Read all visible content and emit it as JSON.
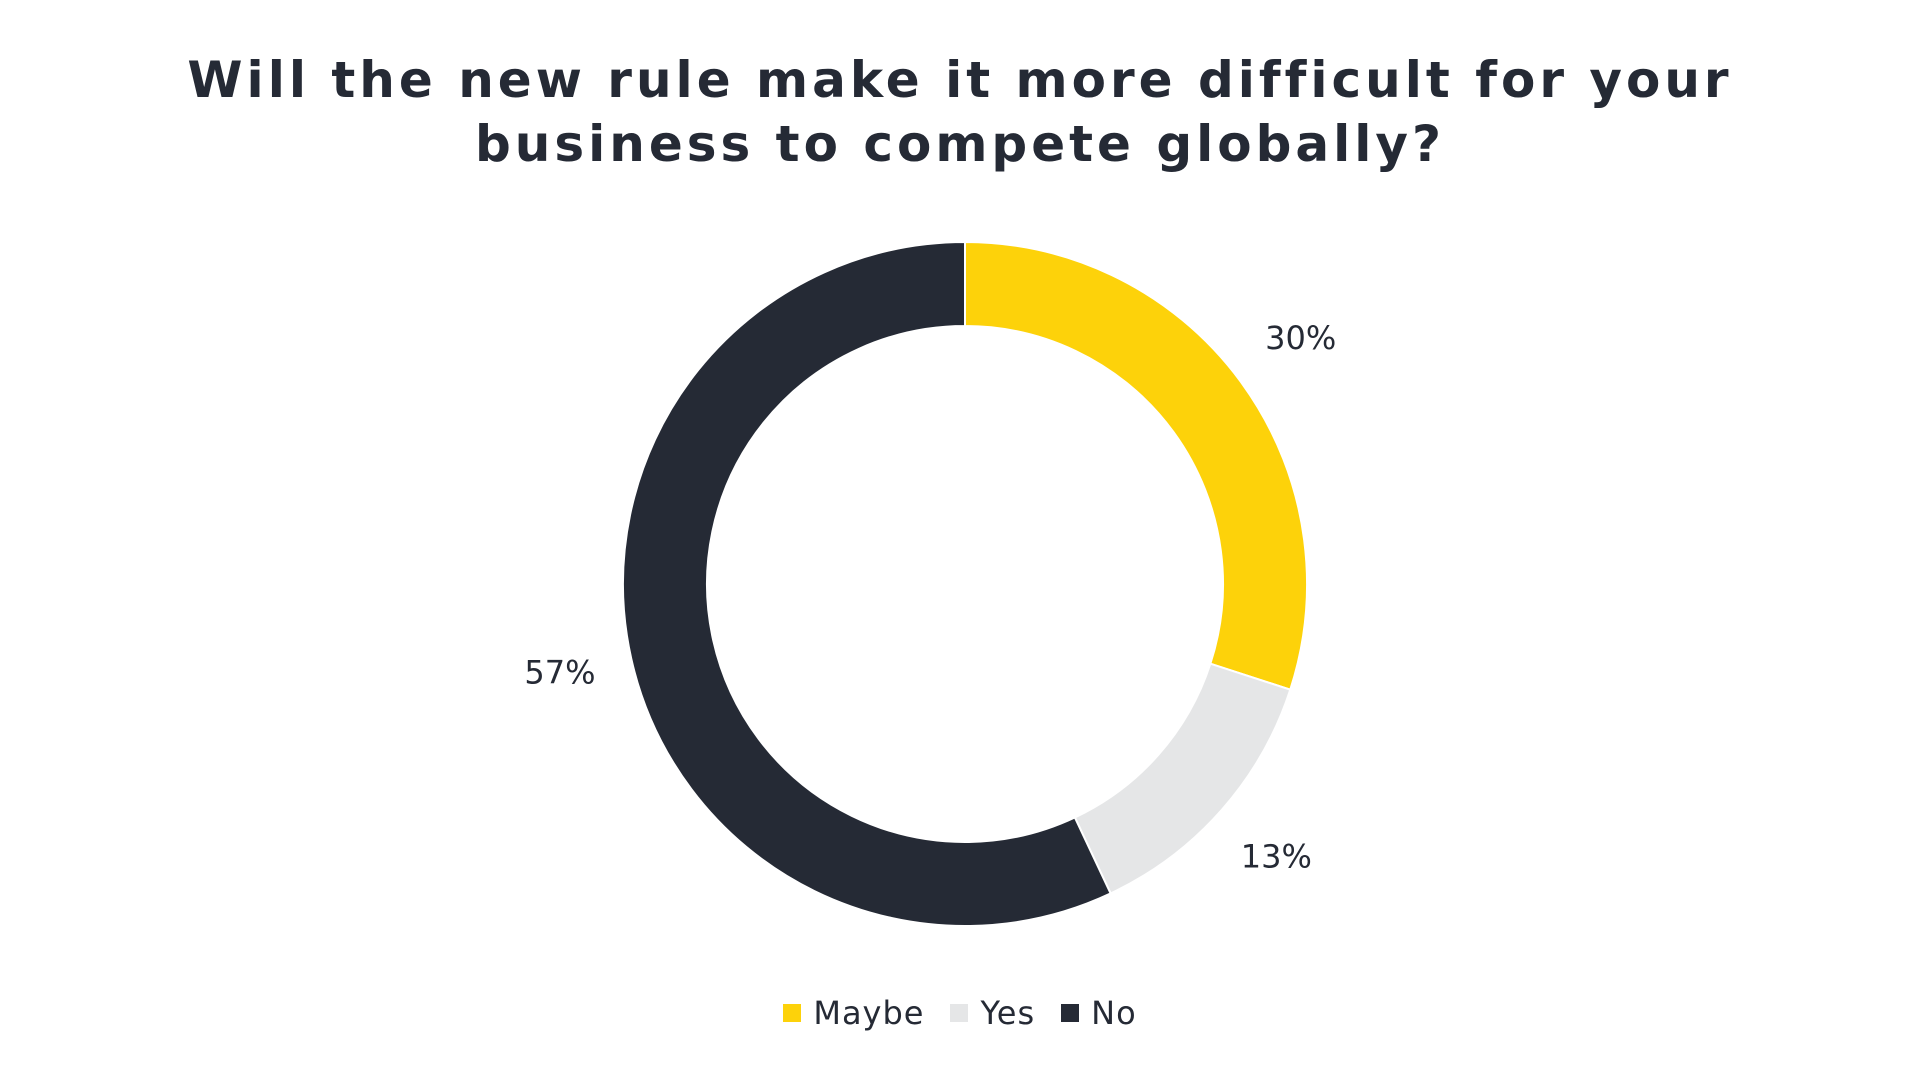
{
  "chart_data": {
    "type": "pie",
    "variant": "donut",
    "title_lines": [
      "Will the new rule make it more difficult for your",
      "business to compete globally?"
    ],
    "slices": [
      {
        "name": "Maybe",
        "value": 30,
        "label": "30%",
        "color": "#fdd20a"
      },
      {
        "name": "Yes",
        "value": 13,
        "label": "13%",
        "color": "#e5e6e7"
      },
      {
        "name": "No",
        "value": 57,
        "label": "57%",
        "color": "#252a35"
      }
    ],
    "legend": {
      "position": "bottom",
      "items": [
        "Maybe",
        "Yes",
        "No"
      ]
    }
  }
}
